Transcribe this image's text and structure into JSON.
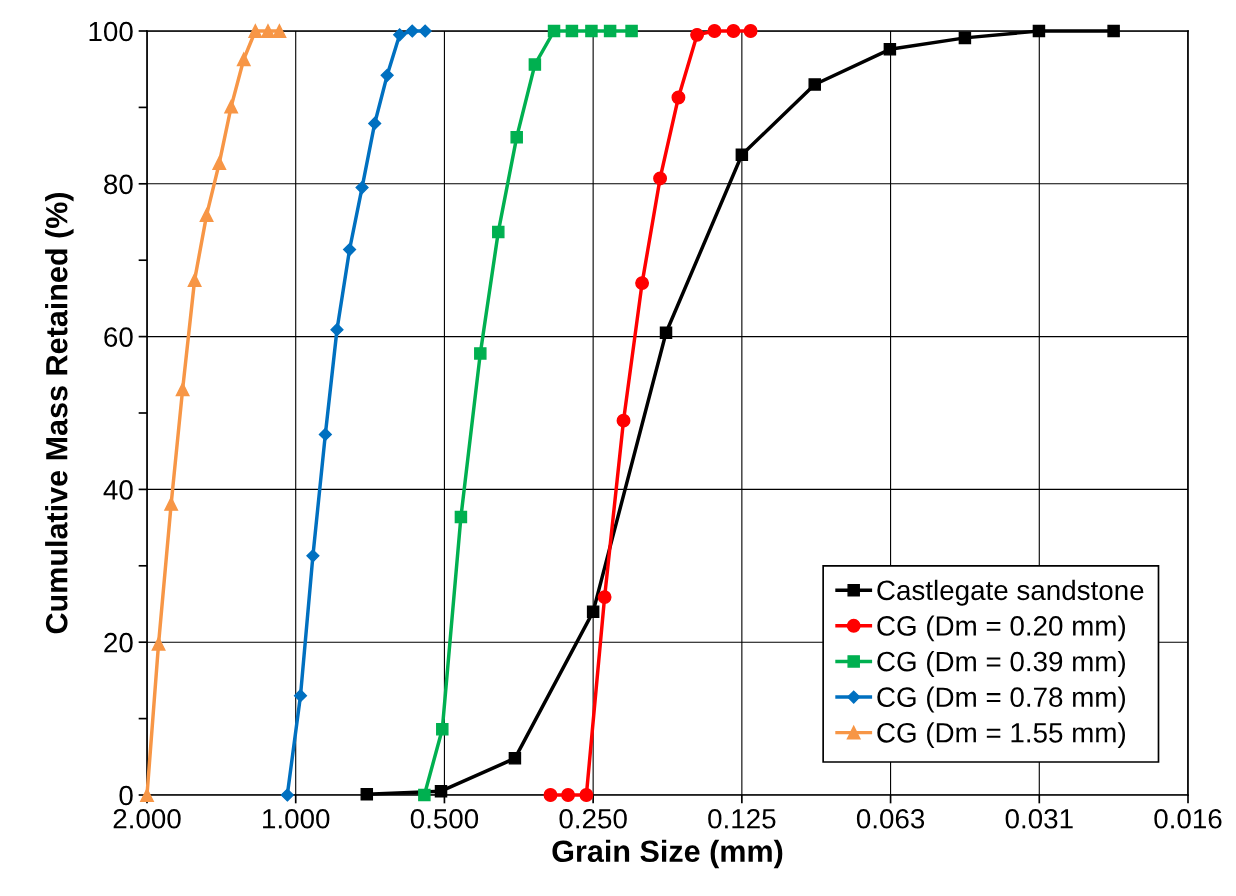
{
  "chart_data": {
    "type": "line",
    "xlabel": "Grain Size (mm)",
    "ylabel": "Cumulative Mass Retained (%)",
    "log": "x",
    "xlim": [
      2.0,
      0.015625
    ],
    "xticks": [
      {
        "value": 2.0,
        "label": "2.000"
      },
      {
        "value": 1.0,
        "label": "1.000"
      },
      {
        "value": 0.5,
        "label": "0.500"
      },
      {
        "value": 0.25,
        "label": "0.250"
      },
      {
        "value": 0.125,
        "label": "0.125"
      },
      {
        "value": 0.0625,
        "label": "0.063"
      },
      {
        "value": 0.03125,
        "label": "0.031"
      },
      {
        "value": 0.015625,
        "label": "0.016"
      }
    ],
    "ylim": [
      0,
      100
    ],
    "yticks": [
      0,
      {
        "value": 10,
        "label": null
      },
      20,
      {
        "value": 30,
        "label": null
      },
      40,
      {
        "value": 50,
        "label": null
      },
      60,
      {
        "value": 70,
        "label": null
      },
      80,
      {
        "value": 90,
        "label": null
      },
      100
    ],
    "grid": true,
    "legend": "bottom right",
    "line_style": "solid",
    "series": [
      {
        "name": "Castlegate sandstone",
        "color": "#000000",
        "marker": "square",
        "x": [
          0.718,
          0.508,
          0.36,
          0.25,
          0.178,
          0.125,
          0.089,
          0.0627,
          0.0442,
          0.0313,
          0.0221
        ],
        "values": [
          0.1,
          0.5,
          4.8,
          24.0,
          60.5,
          83.8,
          93.0,
          97.6,
          99.1,
          100,
          100
        ]
      },
      {
        "name": "CG (Dm = 0.20 mm)",
        "color": "#ff0000",
        "marker": "circle",
        "x": [
          0.305,
          0.281,
          0.258,
          0.237,
          0.217,
          0.199,
          0.183,
          0.168,
          0.154,
          0.142,
          0.13,
          0.12
        ],
        "values": [
          0,
          0,
          0,
          25.9,
          49.0,
          67.0,
          80.7,
          91.3,
          99.5,
          100,
          100,
          100
        ]
      },
      {
        "name": "CG (Dm = 0.39 mm)",
        "color": "#00b050",
        "marker": "square",
        "x": [
          0.549,
          0.505,
          0.463,
          0.423,
          0.389,
          0.357,
          0.328,
          0.3,
          0.276,
          0.252,
          0.231,
          0.209
        ],
        "values": [
          0,
          8.6,
          36.4,
          57.8,
          73.7,
          86.1,
          95.6,
          100,
          100,
          100,
          100,
          100
        ]
      },
      {
        "name": "CG (Dm = 0.78 mm)",
        "color": "#0070c0",
        "marker": "diamond",
        "x": [
          1.04,
          0.978,
          0.923,
          0.871,
          0.825,
          0.778,
          0.734,
          0.692,
          0.653,
          0.616,
          0.581,
          0.547
        ],
        "values": [
          0,
          13.0,
          31.3,
          47.2,
          60.9,
          71.4,
          79.5,
          87.9,
          94.2,
          99.5,
          100,
          100
        ]
      },
      {
        "name": "CG (Dm = 1.55 mm)",
        "color": "#f79646",
        "marker": "triangle",
        "x": [
          2.0,
          1.895,
          1.787,
          1.694,
          1.602,
          1.515,
          1.428,
          1.351,
          1.274,
          1.207,
          1.138,
          1.079
        ],
        "values": [
          0,
          19.8,
          38.1,
          53.1,
          67.4,
          75.9,
          82.7,
          90.1,
          96.3,
          100,
          100,
          100
        ]
      }
    ]
  }
}
